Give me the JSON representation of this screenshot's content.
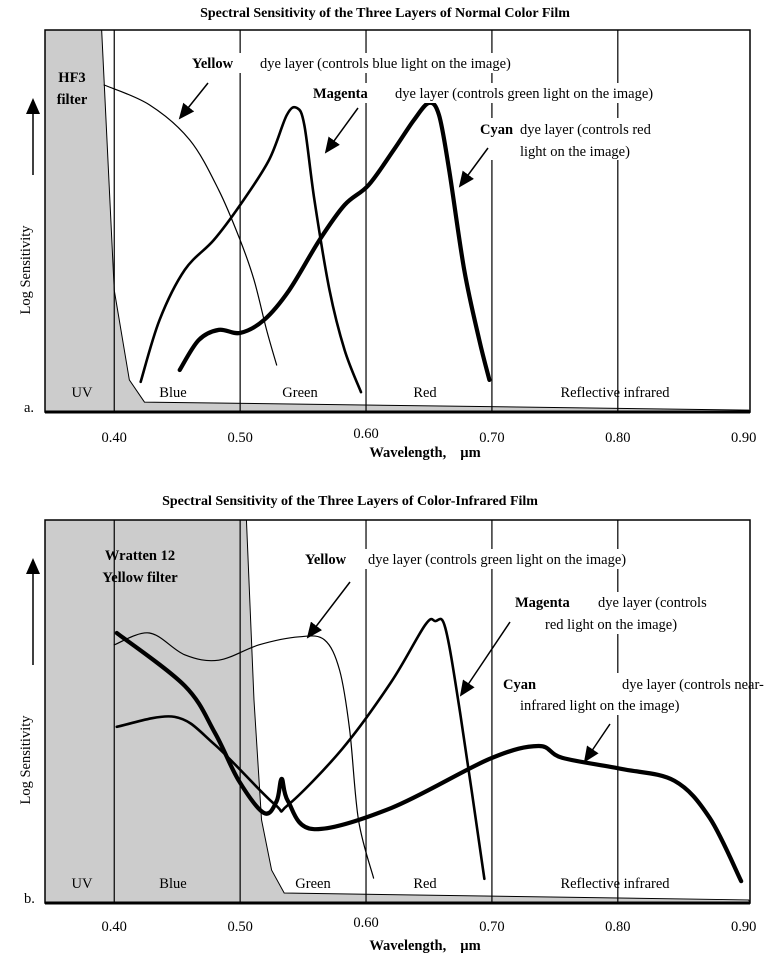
{
  "chart_data": [
    {
      "type": "line",
      "panel": "a.",
      "title": "Spectral Sensitivity of the Three Layers of Normal Color Film",
      "xlabel": "Wavelength,",
      "xunit": "µm",
      "ylabel": "Log Sensitivity",
      "xlim": [
        0.345,
        0.905
      ],
      "ylim": [
        0,
        1
      ],
      "xticks": [
        "0.40",
        "0.50",
        "0.60",
        "0.70",
        "0.80",
        "0.90"
      ],
      "xtick_values": [
        0.4,
        0.5,
        0.6,
        0.7,
        0.8,
        0.9
      ],
      "grid": "vertical",
      "regions": [
        "UV",
        "Blue",
        "Green",
        "Red",
        "Reflective infrared"
      ],
      "filter": {
        "label_line1": "HF3",
        "label_line2": "filter",
        "color": "#cccccc",
        "x": [
          0.345,
          0.39,
          0.4,
          0.412,
          0.424,
          0.904
        ],
        "y": [
          1.0,
          1.0,
          0.319,
          0.084,
          0.026,
          0.005
        ]
      },
      "series": [
        {
          "name": "Yellow",
          "note": "dye layer (controls blue light on the image)",
          "weight": "thin",
          "x": [
            0.392,
            0.428,
            0.46,
            0.483,
            0.5,
            0.511,
            0.521,
            0.529
          ],
          "y": [
            0.856,
            0.804,
            0.712,
            0.581,
            0.45,
            0.346,
            0.215,
            0.123
          ]
        },
        {
          "name": "Magenta",
          "note": "dye layer (controls green light on the image)",
          "weight": "medium",
          "x": [
            0.421,
            0.436,
            0.456,
            0.479,
            0.5,
            0.523,
            0.537,
            0.545,
            0.551,
            0.559,
            0.571,
            0.583,
            0.596
          ],
          "y": [
            0.079,
            0.241,
            0.372,
            0.45,
            0.542,
            0.66,
            0.777,
            0.796,
            0.751,
            0.555,
            0.319,
            0.162,
            0.052
          ]
        },
        {
          "name": "Cyan",
          "note_line1": "dye layer (controls red",
          "note_line2": "light on the image)",
          "weight": "thick",
          "x": [
            0.452,
            0.467,
            0.483,
            0.5,
            0.519,
            0.539,
            0.563,
            0.583,
            0.602,
            0.622,
            0.638,
            0.65,
            0.658,
            0.666,
            0.678,
            0.69,
            0.698
          ],
          "y": [
            0.11,
            0.188,
            0.215,
            0.207,
            0.241,
            0.319,
            0.45,
            0.542,
            0.594,
            0.686,
            0.764,
            0.809,
            0.777,
            0.634,
            0.372,
            0.188,
            0.084
          ]
        }
      ]
    },
    {
      "type": "line",
      "panel": "b.",
      "title": "Spectral Sensitivity of the Three Layers of Color-Infrared Film",
      "xlabel": "Wavelength,",
      "xunit": "µm",
      "ylabel": "Log Sensitivity",
      "xlim": [
        0.345,
        0.905
      ],
      "ylim": [
        0,
        1
      ],
      "xticks": [
        "0.40",
        "0.50",
        "0.60",
        "0.70",
        "0.80",
        "0.90"
      ],
      "xtick_values": [
        0.4,
        0.5,
        0.6,
        0.7,
        0.8,
        0.9
      ],
      "grid": "vertical",
      "regions": [
        "UV",
        "Blue",
        "Green",
        "Red",
        "Reflective infrared"
      ],
      "filter": {
        "label_line1": "Wratten 12",
        "label_line2": "Yellow filter",
        "color": "#cccccc",
        "x": [
          0.345,
          0.505,
          0.511,
          0.517,
          0.525,
          0.535,
          0.904
        ],
        "y": [
          1.0,
          1.0,
          0.53,
          0.217,
          0.086,
          0.026,
          0.008
        ]
      },
      "series": [
        {
          "name": "Yellow",
          "note": "dye layer (controls green light on the image)",
          "weight": "thin",
          "x": [
            0.4,
            0.428,
            0.456,
            0.483,
            0.515,
            0.547,
            0.567,
            0.579,
            0.587,
            0.594,
            0.606
          ],
          "y": [
            0.674,
            0.705,
            0.648,
            0.634,
            0.674,
            0.695,
            0.687,
            0.608,
            0.452,
            0.217,
            0.065
          ]
        },
        {
          "name": "Magenta",
          "note_line1": "dye layer (controls",
          "note_line2": "red light on the image)",
          "weight": "medium",
          "x": [
            0.402,
            0.448,
            0.48,
            0.527,
            0.538,
            0.581,
            0.62,
            0.647,
            0.655,
            0.663,
            0.675,
            0.694
          ],
          "y": [
            0.46,
            0.486,
            0.413,
            0.259,
            0.256,
            0.402,
            0.577,
            0.726,
            0.736,
            0.718,
            0.491,
            0.063
          ]
        },
        {
          "name": "Cyan",
          "note_line1": "dye layer (controls near-",
          "note_line2": "infrared light on the image)",
          "weight": "thick",
          "x": [
            0.402,
            0.456,
            0.48,
            0.499,
            0.519,
            0.529,
            0.533,
            0.538,
            0.558,
            0.62,
            0.698,
            0.737,
            0.756,
            0.803,
            0.845,
            0.873,
            0.898
          ],
          "y": [
            0.705,
            0.567,
            0.444,
            0.319,
            0.235,
            0.266,
            0.324,
            0.266,
            0.193,
            0.248,
            0.376,
            0.41,
            0.379,
            0.35,
            0.319,
            0.222,
            0.057
          ]
        }
      ]
    }
  ]
}
